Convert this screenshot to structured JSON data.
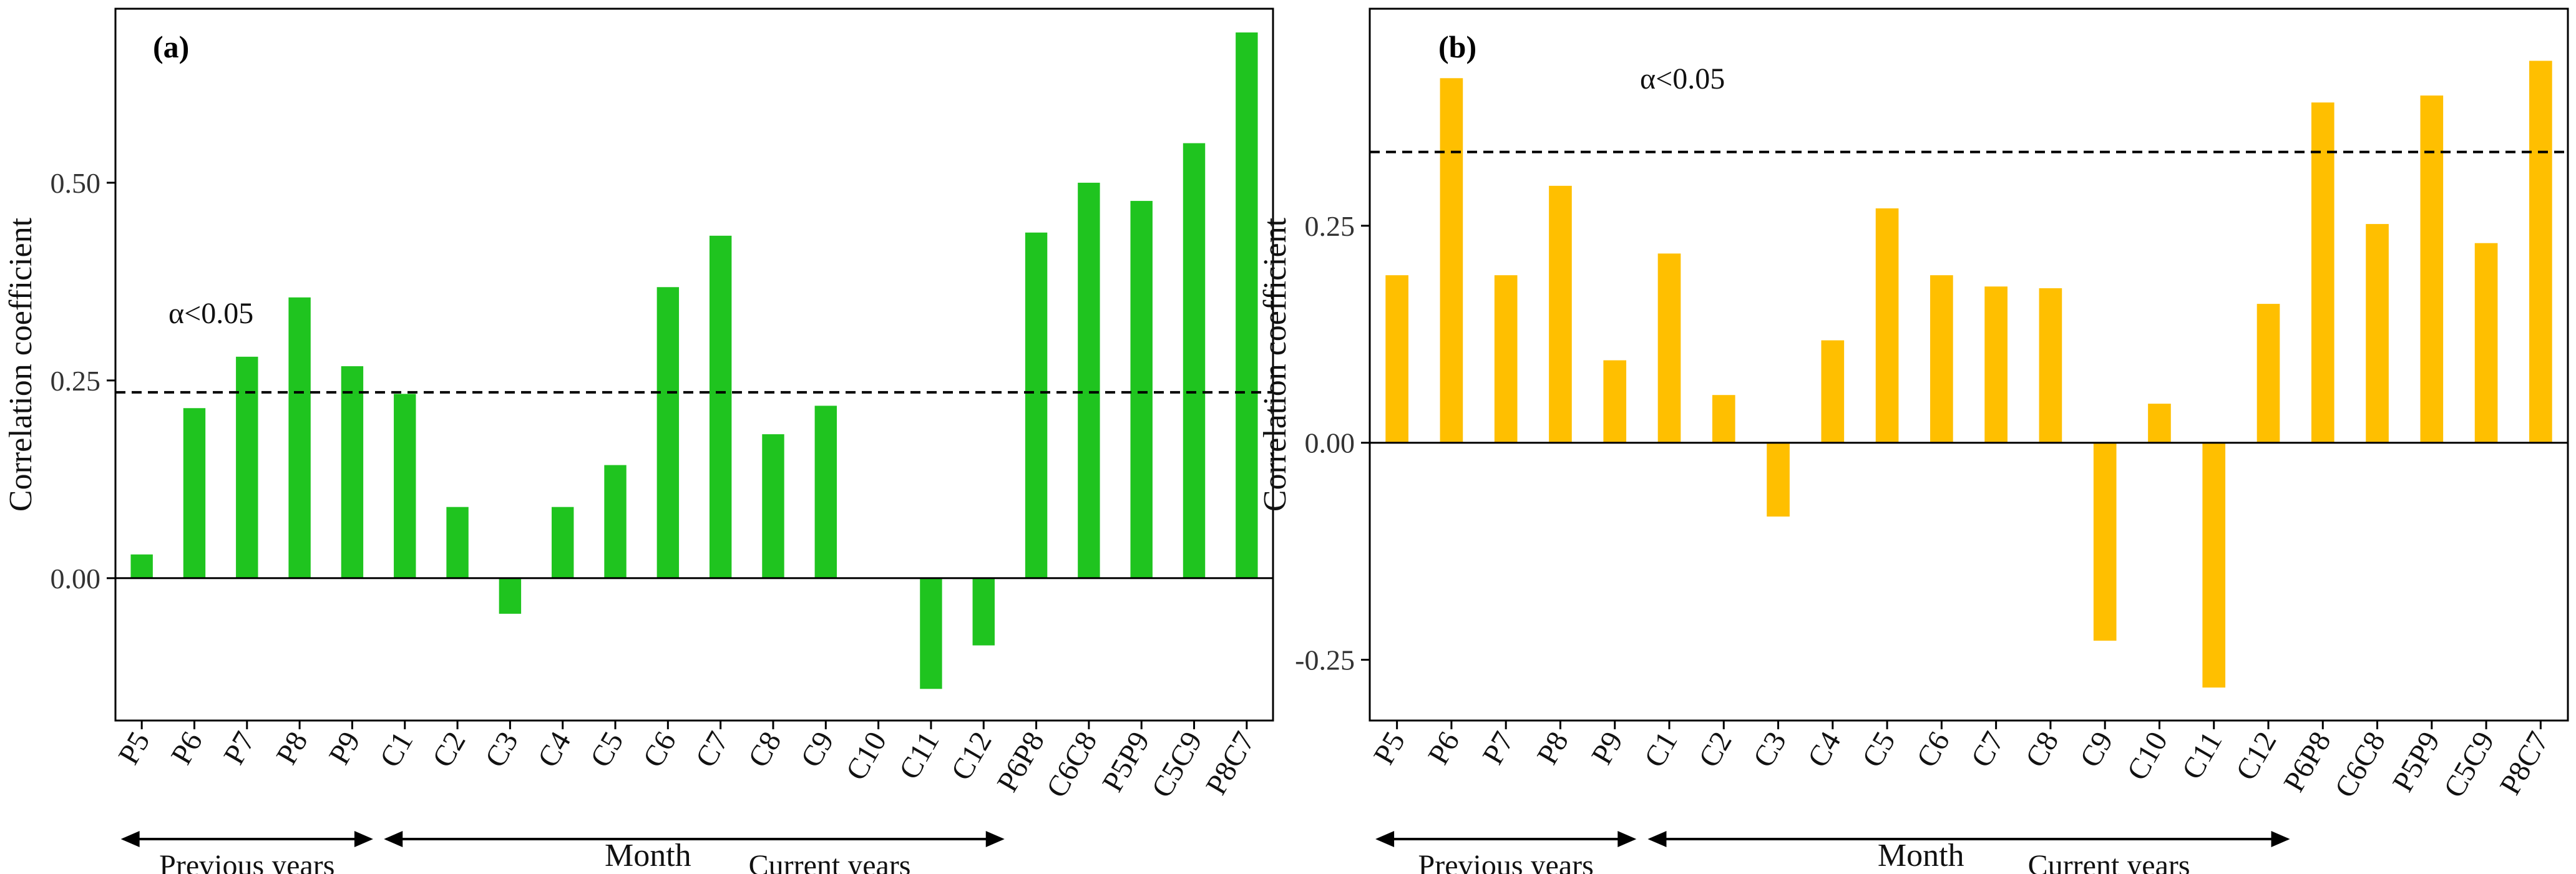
{
  "chart_data": [
    {
      "type": "bar",
      "panel_label": "(a)",
      "ylabel": "Correlation coefficient",
      "xlabel": "Month",
      "color": "#1fc41f",
      "ylim": [
        -0.18,
        0.72
      ],
      "yticks": [
        0.0,
        0.25,
        0.5
      ],
      "ytick_labels": [
        "0.00",
        "0.25",
        "0.50"
      ],
      "significance_level": 0.235,
      "significance_label": "α<0.05",
      "categories": [
        "P5",
        "P6",
        "P7",
        "P8",
        "P9",
        "C1",
        "C2",
        "C3",
        "C4",
        "C5",
        "C6",
        "C7",
        "C8",
        "C9",
        "C10",
        "C11",
        "C12",
        "P6P8",
        "C6C8",
        "P5P9",
        "C5C9",
        "P8C7"
      ],
      "values": [
        0.03,
        0.215,
        0.28,
        0.355,
        0.268,
        0.233,
        0.09,
        -0.045,
        0.09,
        0.143,
        0.368,
        0.433,
        0.182,
        0.218,
        0.0,
        -0.14,
        -0.085,
        0.437,
        0.5,
        0.477,
        0.55,
        0.69
      ],
      "groups": [
        {
          "label": "Previous years",
          "from": "P5",
          "to": "P9"
        },
        {
          "label": "Current years",
          "from": "C1",
          "to": "C12"
        }
      ]
    },
    {
      "type": "bar",
      "panel_label": "(b)",
      "ylabel": "Correlation coefficient",
      "xlabel": "Month",
      "color": "#ffbf00",
      "ylim": [
        -0.32,
        0.5
      ],
      "yticks": [
        -0.25,
        0.0,
        0.25
      ],
      "ytick_labels": [
        "-0.25",
        "0.00",
        "0.25"
      ],
      "significance_level": 0.335,
      "significance_label": "α<0.05",
      "categories": [
        "P5",
        "P6",
        "P7",
        "P8",
        "P9",
        "C1",
        "C2",
        "C3",
        "C4",
        "C5",
        "C6",
        "C7",
        "C8",
        "C9",
        "C10",
        "C11",
        "C12",
        "P6P8",
        "C6C8",
        "P5P9",
        "C5C9",
        "P8C7"
      ],
      "values": [
        0.193,
        0.42,
        0.193,
        0.296,
        0.095,
        0.218,
        0.055,
        -0.085,
        0.118,
        0.27,
        0.193,
        0.18,
        0.178,
        -0.228,
        0.045,
        -0.282,
        0.16,
        0.392,
        0.252,
        0.4,
        0.23,
        0.44
      ],
      "groups": [
        {
          "label": "Previous years",
          "from": "P5",
          "to": "P9"
        },
        {
          "label": "Current years",
          "from": "C1",
          "to": "C12"
        }
      ]
    }
  ]
}
